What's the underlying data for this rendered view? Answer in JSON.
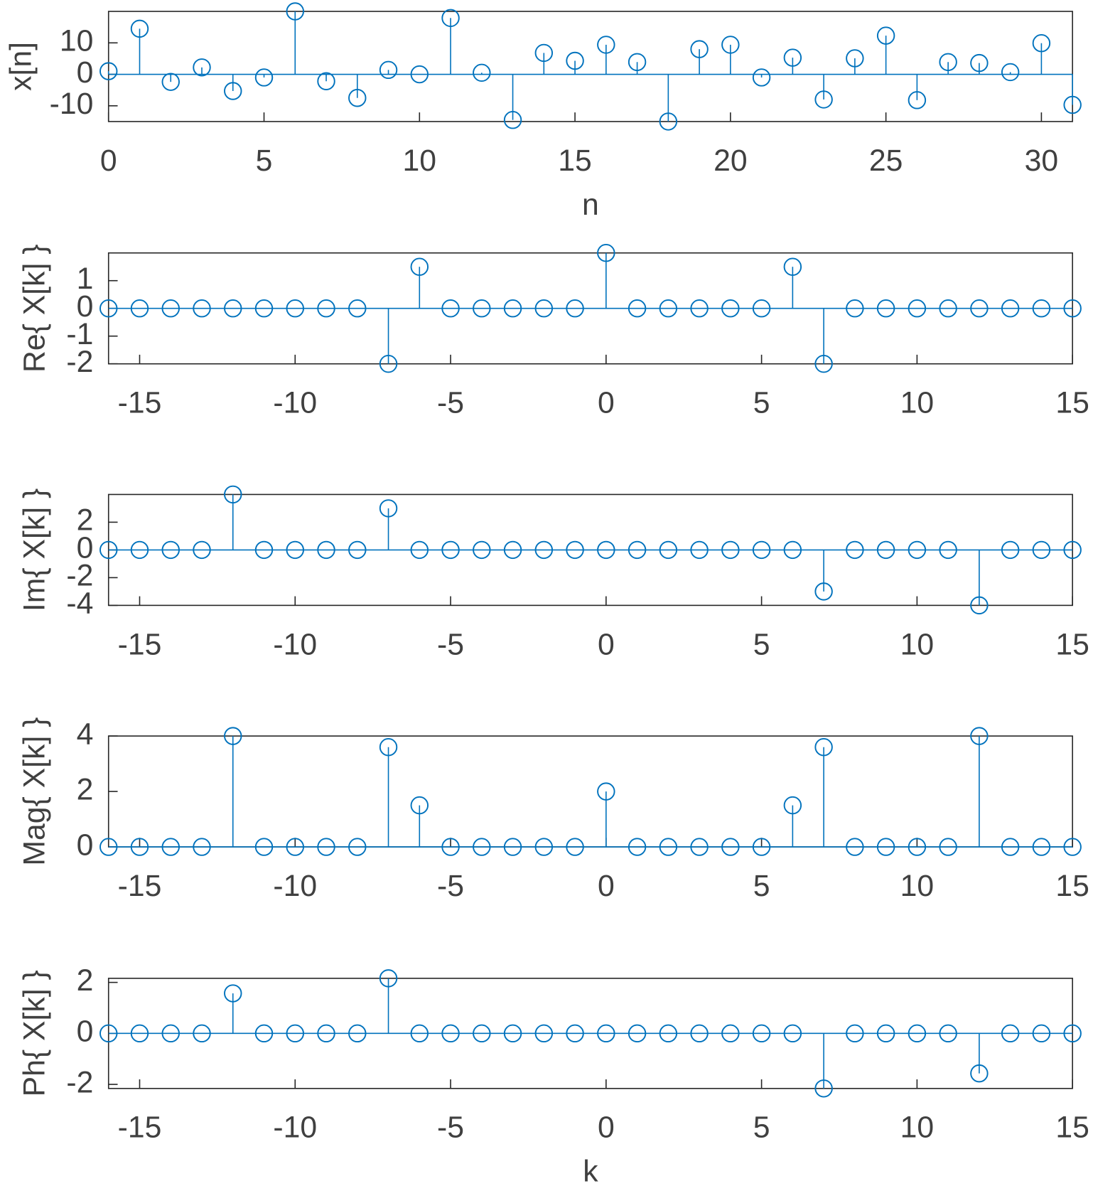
{
  "chart_data": [
    {
      "type": "stem",
      "y_label": "x[n]",
      "x_label": "n",
      "color": "#0072bd",
      "x": [
        0,
        1,
        2,
        3,
        4,
        5,
        6,
        7,
        8,
        9,
        10,
        11,
        12,
        13,
        14,
        15,
        16,
        17,
        18,
        19,
        20,
        21,
        22,
        23,
        24,
        25,
        26,
        27,
        28,
        29,
        30,
        31
      ],
      "values": [
        1,
        14.5,
        -2.4,
        2.2,
        -5.3,
        -1,
        20,
        -2.2,
        -7.5,
        1.4,
        0,
        17.9,
        0.5,
        -14.5,
        6.8,
        4.3,
        9.4,
        3.9,
        -15,
        8,
        9.4,
        -1,
        5.3,
        -8,
        5.1,
        12.3,
        -8.2,
        3.9,
        3.6,
        0.7,
        9.9,
        -9.7
      ],
      "xlim": [
        0,
        31
      ],
      "xticks": [
        0,
        5,
        10,
        15,
        20,
        25,
        30
      ],
      "ylim": [
        -15,
        20
      ],
      "yticks": [
        -10,
        0,
        10
      ]
    },
    {
      "type": "stem",
      "y_label": "Re{ X[k] }",
      "color": "#0072bd",
      "x": [
        -16,
        -15,
        -14,
        -13,
        -12,
        -11,
        -10,
        -9,
        -8,
        -7,
        -6,
        -5,
        -4,
        -3,
        -2,
        -1,
        0,
        1,
        2,
        3,
        4,
        5,
        6,
        7,
        8,
        9,
        10,
        11,
        12,
        13,
        14,
        15
      ],
      "values": [
        0,
        0,
        0,
        0,
        0,
        0,
        0,
        0,
        0,
        -2,
        1.5,
        0,
        0,
        0,
        0,
        0,
        2,
        0,
        0,
        0,
        0,
        0,
        1.5,
        -2,
        0,
        0,
        0,
        0,
        0,
        0,
        0,
        0
      ],
      "xlim": [
        -16,
        15
      ],
      "xticks": [
        -15,
        -10,
        -5,
        0,
        5,
        10,
        15
      ],
      "ylim": [
        -2,
        2
      ],
      "yticks": [
        -2,
        -1,
        0,
        1
      ]
    },
    {
      "type": "stem",
      "y_label": "Im{ X[k] }",
      "color": "#0072bd",
      "x": [
        -16,
        -15,
        -14,
        -13,
        -12,
        -11,
        -10,
        -9,
        -8,
        -7,
        -6,
        -5,
        -4,
        -3,
        -2,
        -1,
        0,
        1,
        2,
        3,
        4,
        5,
        6,
        7,
        8,
        9,
        10,
        11,
        12,
        13,
        14,
        15
      ],
      "values": [
        0,
        0,
        0,
        0,
        4,
        0,
        0,
        0,
        0,
        3,
        0,
        0,
        0,
        0,
        0,
        0,
        0,
        0,
        0,
        0,
        0,
        0,
        0,
        -3,
        0,
        0,
        0,
        0,
        -4,
        0,
        0,
        0
      ],
      "xlim": [
        -16,
        15
      ],
      "xticks": [
        -15,
        -10,
        -5,
        0,
        5,
        10,
        15
      ],
      "ylim": [
        -4,
        4
      ],
      "yticks": [
        -4,
        -2,
        0,
        2
      ]
    },
    {
      "type": "stem",
      "y_label": "Mag{ X[k] }",
      "color": "#0072bd",
      "x": [
        -16,
        -15,
        -14,
        -13,
        -12,
        -11,
        -10,
        -9,
        -8,
        -7,
        -6,
        -5,
        -4,
        -3,
        -2,
        -1,
        0,
        1,
        2,
        3,
        4,
        5,
        6,
        7,
        8,
        9,
        10,
        11,
        12,
        13,
        14,
        15
      ],
      "values": [
        0,
        0,
        0,
        0,
        4,
        0,
        0,
        0,
        0,
        3.6,
        1.5,
        0,
        0,
        0,
        0,
        0,
        2,
        0,
        0,
        0,
        0,
        0,
        1.5,
        3.6,
        0,
        0,
        0,
        0,
        4,
        0,
        0,
        0
      ],
      "xlim": [
        -16,
        15
      ],
      "xticks": [
        -15,
        -10,
        -5,
        0,
        5,
        10,
        15
      ],
      "ylim": [
        0,
        4
      ],
      "yticks": [
        0,
        2,
        4
      ]
    },
    {
      "type": "stem",
      "y_label": "Ph{ X[k] }",
      "x_label": "k",
      "color": "#0072bd",
      "x": [
        -16,
        -15,
        -14,
        -13,
        -12,
        -11,
        -10,
        -9,
        -8,
        -7,
        -6,
        -5,
        -4,
        -3,
        -2,
        -1,
        0,
        1,
        2,
        3,
        4,
        5,
        6,
        7,
        8,
        9,
        10,
        11,
        12,
        13,
        14,
        15
      ],
      "values": [
        0,
        0,
        0,
        0,
        1.57,
        0,
        0,
        0,
        0,
        2.16,
        0,
        0,
        0,
        0,
        0,
        0,
        0,
        0,
        0,
        0,
        0,
        0,
        0,
        -2.16,
        0,
        0,
        0,
        0,
        -1.57,
        0,
        0,
        0
      ],
      "xlim": [
        -16,
        15
      ],
      "xticks": [
        -15,
        -10,
        -5,
        0,
        5,
        10,
        15
      ],
      "ylim": [
        -2.16,
        2.16
      ],
      "yticks": [
        -2,
        0,
        2
      ]
    }
  ]
}
